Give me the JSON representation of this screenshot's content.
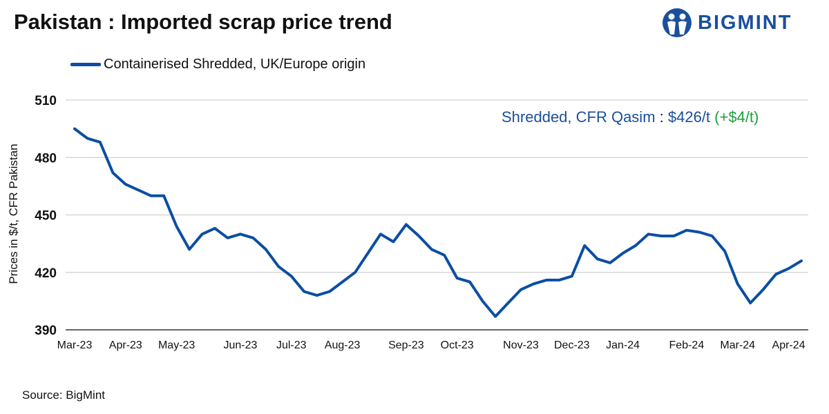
{
  "title": "Pakistan : Imported scrap price trend",
  "logo": {
    "text": "BIGMINT",
    "color": "#1a4f9c"
  },
  "annotation": {
    "label": "Shredded, CFR Qasim",
    "separator": " : ",
    "price": "$426/t",
    "change": "(+$4/t)"
  },
  "source": "Source: BigMint",
  "chart_data": {
    "type": "line",
    "title": "Pakistan : Imported scrap price trend",
    "xlabel": "",
    "ylabel": "Prices in $/t, CFR Pakistan",
    "ylim": [
      390,
      510
    ],
    "yticks": [
      390,
      420,
      450,
      480,
      510
    ],
    "grid": true,
    "legend_position": "top-left",
    "x_tick_labels": [
      {
        "label": "Mar-23",
        "index": 0
      },
      {
        "label": "Apr-23",
        "index": 4
      },
      {
        "label": "May-23",
        "index": 8
      },
      {
        "label": "Jun-23",
        "index": 13
      },
      {
        "label": "Jul-23",
        "index": 17
      },
      {
        "label": "Aug-23",
        "index": 21
      },
      {
        "label": "Sep-23",
        "index": 26
      },
      {
        "label": "Oct-23",
        "index": 30
      },
      {
        "label": "Nov-23",
        "index": 35
      },
      {
        "label": "Dec-23",
        "index": 39
      },
      {
        "label": "Jan-24",
        "index": 43
      },
      {
        "label": "Feb-24",
        "index": 48
      },
      {
        "label": "Mar-24",
        "index": 52
      },
      {
        "label": "Apr-24",
        "index": 56
      }
    ],
    "series": [
      {
        "name": "Containerised Shredded, UK/Europe origin",
        "color": "#0b4ea2",
        "values": [
          495,
          490,
          488,
          472,
          466,
          463,
          460,
          460,
          444,
          432,
          440,
          443,
          438,
          440,
          438,
          432,
          423,
          418,
          410,
          408,
          410,
          415,
          420,
          430,
          440,
          436,
          445,
          439,
          432,
          429,
          417,
          415,
          405,
          397,
          404,
          411,
          414,
          416,
          416,
          418,
          434,
          427,
          425,
          430,
          434,
          440,
          439,
          439,
          442,
          441,
          439,
          431,
          414,
          404,
          411,
          419,
          422,
          426
        ]
      }
    ]
  }
}
